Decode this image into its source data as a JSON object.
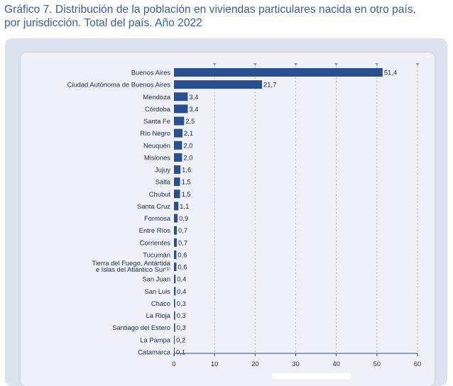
{
  "title": {
    "line1": "Gráfico 7. Distribución de la población en viviendas particulares nacida en otro país,",
    "line2": "por jurisdicción. Total del país. Año 2022"
  },
  "colors": {
    "bar": "#2b4f8e",
    "grid": "#b8b8b8",
    "axis": "#2b4f8e"
  },
  "chart_data": {
    "type": "bar",
    "orientation": "horizontal",
    "xlim": [
      0,
      60
    ],
    "xticks": [
      0,
      10,
      20,
      30,
      40,
      50,
      60
    ],
    "grid": true,
    "categories": [
      "Buenos Aires",
      "Ciudad Autónoma de Buenos Aires",
      "Mendoza",
      "Córdoba",
      "Santa Fe",
      "Río Negro",
      "Neuquén",
      "Misiones",
      "Jujuy",
      "Salta",
      "Chubut",
      "Santa Cruz",
      "Formosa",
      "Entre Ríos",
      "Corrientes",
      "Tucumán",
      "Tierra del Fuego, Antártida e Islas del Atlántico Sur",
      "San Juan",
      "San Luis",
      "Chaco",
      "La Rioja",
      "Santiago del Estero",
      "La Pampa",
      "Catamarca"
    ],
    "category_label_lines": [
      [
        "Buenos Aires"
      ],
      [
        "Ciudad Autónoma de Buenos Aires"
      ],
      [
        "Mendoza"
      ],
      [
        "Córdoba"
      ],
      [
        "Santa Fe"
      ],
      [
        "Río Negro"
      ],
      [
        "Neuquén"
      ],
      [
        "Misiones"
      ],
      [
        "Jujuy"
      ],
      [
        "Salta"
      ],
      [
        "Chubut"
      ],
      [
        "Santa Cruz"
      ],
      [
        "Formosa"
      ],
      [
        "Entre Ríos"
      ],
      [
        "Corrientes"
      ],
      [
        "Tucumán"
      ],
      [
        "Tierra del Fuego, Antártida",
        "e Islas del Atlántico Sur⁽¹⁾"
      ],
      [
        "San Juan"
      ],
      [
        "San Luis"
      ],
      [
        "Chaco"
      ],
      [
        "La Rioja"
      ],
      [
        "Santiago del Estero"
      ],
      [
        "La Pampa"
      ],
      [
        "Catamarca"
      ]
    ],
    "values": [
      51.4,
      21.7,
      3.4,
      3.4,
      2.5,
      2.1,
      2.0,
      2.0,
      1.6,
      1.5,
      1.5,
      1.1,
      0.9,
      0.7,
      0.7,
      0.6,
      0.6,
      0.4,
      0.4,
      0.3,
      0.3,
      0.3,
      0.2,
      0.1
    ],
    "value_labels": [
      "51,4",
      "21,7",
      "3,4",
      "3,4",
      "2,5",
      "2,1",
      "2,0",
      "2,0",
      "1,6",
      "1,5",
      "1,5",
      "1,1",
      "0,9",
      "0,7",
      "0,7",
      "0,6",
      "0,6",
      "0,4",
      "0,4",
      "0,3",
      "0,3",
      "0,3",
      "0,2",
      "0,1"
    ]
  }
}
